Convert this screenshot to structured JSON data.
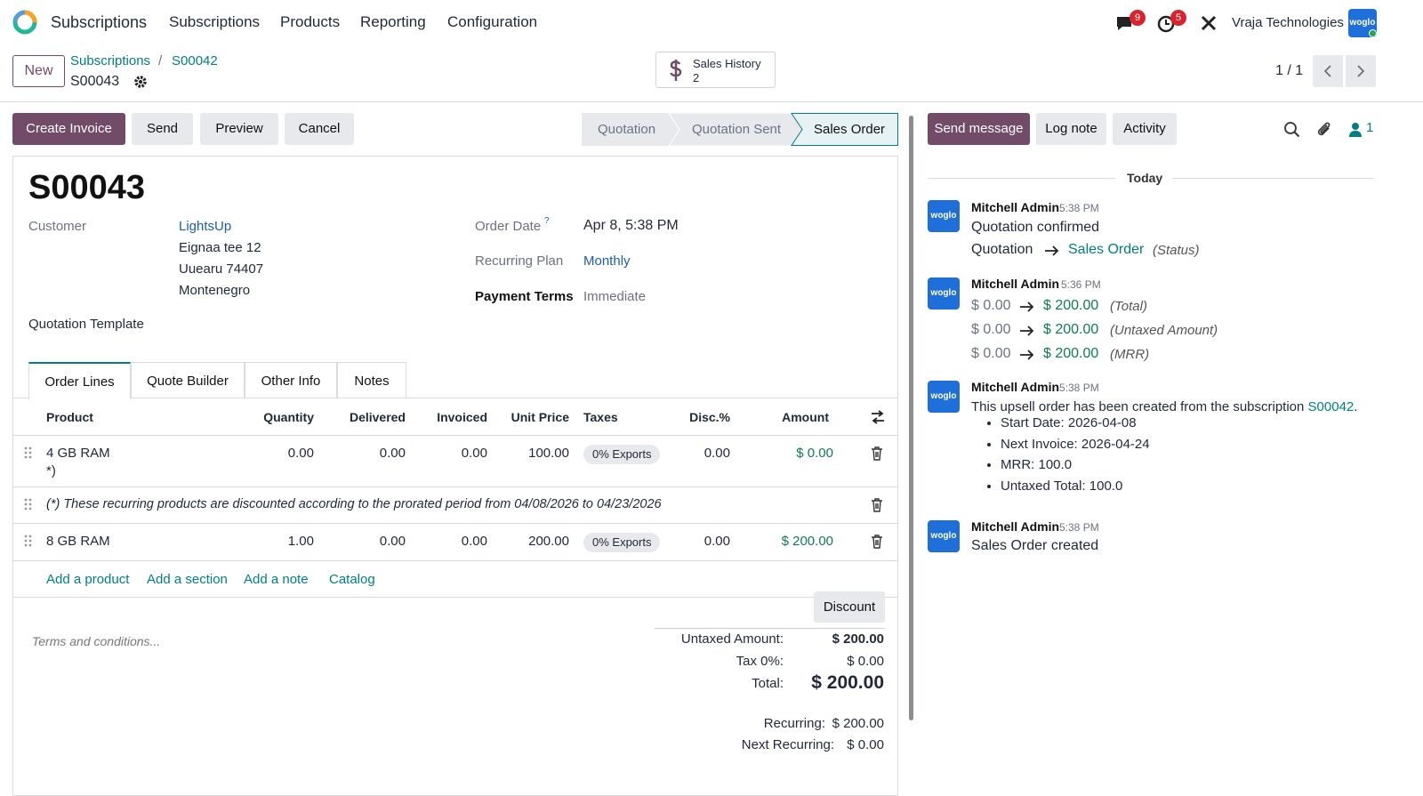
{
  "nav": {
    "app": "Subscriptions",
    "menu": [
      "Subscriptions",
      "Products",
      "Reporting",
      "Configuration"
    ],
    "messages_badge": "9",
    "activities_badge": "5",
    "company": "Vraja Technologies",
    "avatar": "woglo"
  },
  "control": {
    "new_button": "New",
    "breadcrumb": [
      "Subscriptions",
      "S00042"
    ],
    "record": "S00043",
    "smart_button": {
      "label": "Sales History",
      "count": "2"
    },
    "pager": "1 / 1"
  },
  "actions": [
    "Create Invoice",
    "Send",
    "Preview",
    "Cancel"
  ],
  "statusbar": [
    "Quotation",
    "Quotation Sent",
    "Sales Order"
  ],
  "form": {
    "title": "S00043",
    "customer_label": "Customer",
    "customer": "LightsUp",
    "address": [
      "Eignaa tee 12",
      "Uuearu 74407",
      "Montenegro"
    ],
    "quotation_template_label": "Quotation Template",
    "order_date_label": "Order Date",
    "order_date_help": "?",
    "order_date": "Apr 8, 5:38 PM",
    "recurring_plan_label": "Recurring Plan",
    "recurring_plan": "Monthly",
    "payment_terms_label": "Payment Terms",
    "payment_terms": "Immediate"
  },
  "tabs": [
    "Order Lines",
    "Quote Builder",
    "Other Info",
    "Notes"
  ],
  "table": {
    "headers": [
      "Product",
      "Quantity",
      "Delivered",
      "Invoiced",
      "Unit Price",
      "Taxes",
      "Disc.%",
      "Amount"
    ],
    "rows": [
      {
        "product": "4 GB RAM",
        "product_note": "*)",
        "quantity": "0.00",
        "delivered": "0.00",
        "invoiced": "0.00",
        "unit_price": "100.00",
        "taxes": "0% Exports",
        "discount": "0.00",
        "amount": "$ 0.00"
      },
      {
        "product": "8 GB RAM",
        "quantity": "1.00",
        "delivered": "0.00",
        "invoiced": "0.00",
        "unit_price": "200.00",
        "taxes": "0% Exports",
        "discount": "0.00",
        "amount": "$ 200.00"
      }
    ],
    "note": "(*) These recurring products are discounted according to the prorated period from 04/08/2026 to 04/23/2026",
    "add_links": [
      "Add a product",
      "Add a section",
      "Add a note",
      "Catalog"
    ]
  },
  "totals": {
    "discount_button": "Discount",
    "terms_placeholder": "Terms and conditions...",
    "lines": [
      {
        "label": "Untaxed Amount:",
        "value": "$ 200.00"
      },
      {
        "label": "Tax 0%:",
        "value": "$ 0.00"
      },
      {
        "label": "Total:",
        "value": "$ 200.00"
      }
    ],
    "recurring": [
      {
        "label": "Recurring:",
        "value": "$ 200.00"
      },
      {
        "label": "Next Recurring:",
        "value": "$ 0.00"
      }
    ]
  },
  "chatter": {
    "buttons": [
      "Send message",
      "Log note",
      "Activity"
    ],
    "followers": "1",
    "day": "Today",
    "messages": [
      {
        "avatar": "woglo",
        "author": "Mitchell Admin",
        "time": "5:38 PM",
        "body": "Quotation confirmed",
        "tracking": [
          {
            "old": "Quotation",
            "new": "Sales Order",
            "field": "(Status)"
          }
        ]
      },
      {
        "avatar": "woglo",
        "author": "Mitchell Admin",
        "time": "5:36 PM",
        "tracking": [
          {
            "old": "$ 0.00",
            "new": "$ 200.00",
            "field": "(Total)"
          },
          {
            "old": "$ 0.00",
            "new": "$ 200.00",
            "field": "(Untaxed Amount)"
          },
          {
            "old": "$ 0.00",
            "new": "$ 200.00",
            "field": "(MRR)"
          }
        ]
      },
      {
        "avatar": "woglo",
        "author": "Mitchell Admin",
        "time": "5:38 PM",
        "body": "This upsell order has been created from the subscription",
        "link": "S00042",
        "body_end": ".",
        "bullets": [
          "Start Date: 2026-04-08",
          "Next Invoice: 2026-04-24",
          "MRR: 100.0",
          "Untaxed Total: 100.0"
        ]
      },
      {
        "avatar": "woglo",
        "author": "Mitchell Admin",
        "time": "5:38 PM",
        "body": "Sales Order created"
      }
    ]
  }
}
